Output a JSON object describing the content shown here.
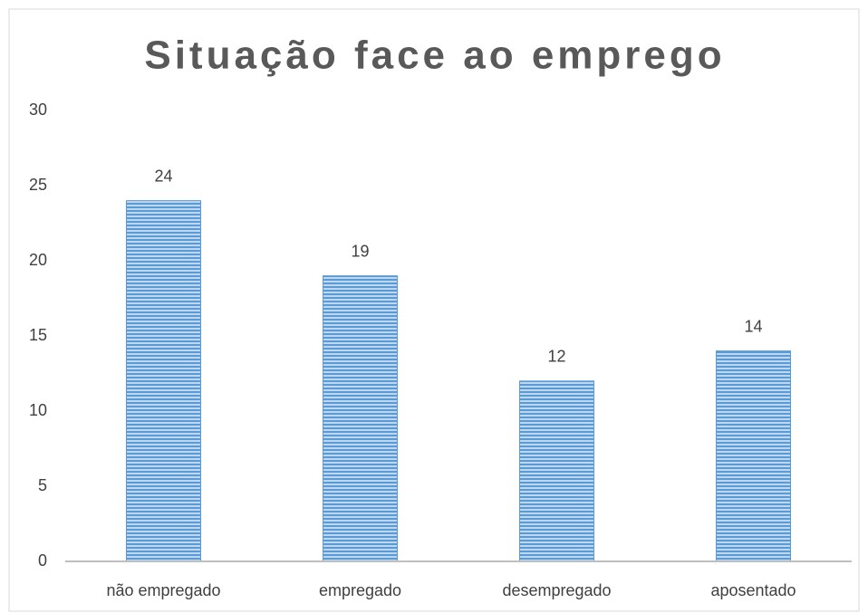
{
  "chart_data": {
    "type": "bar",
    "title": "Situação face ao emprego",
    "categories": [
      "não empregado",
      "empregado",
      "desempregado",
      "aposentado"
    ],
    "values": [
      24,
      19,
      12,
      14
    ],
    "color": "#5b9bd5",
    "ylim": [
      0,
      30
    ],
    "yticks": [
      0,
      5,
      10,
      15,
      20,
      25,
      30
    ],
    "grid": false
  }
}
